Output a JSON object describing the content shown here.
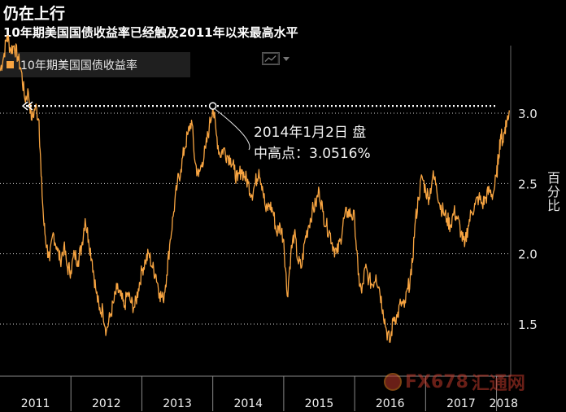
{
  "header": {
    "title": "仍在上行",
    "subtitle": "10年期美国国债收益率已经触及2011年以来最高水平"
  },
  "legend": {
    "label": "10年期美国国债收益率"
  },
  "toolbar": {
    "chart_type_icon": "line-chart-icon"
  },
  "annotation": {
    "line1": "2014年1月2日 盘",
    "line2": "中高点：3.0516%"
  },
  "ylabel": "百分比",
  "watermark": {
    "text": "FX678",
    "text_cn": "汇通网",
    "icon": "fx678-logo-icon"
  },
  "colors": {
    "background": "#000000",
    "series": "#f7a441",
    "grid": "#cfcfcf",
    "annotation": "#e6e6e6"
  },
  "chart_data": {
    "type": "line",
    "title": "仍在上行",
    "subtitle": "10年期美国国债收益率已经触及2011年以来最高水平",
    "xlabel": "",
    "ylabel": "百分比",
    "xlim": [
      2011.0,
      2018.2
    ],
    "ylim": [
      1.2,
      3.5
    ],
    "x_ticks": [
      "2011",
      "2012",
      "2013",
      "2014",
      "2015",
      "2016",
      "2017",
      "2018"
    ],
    "y_ticks": [
      1.5,
      2.0,
      2.5,
      3.0
    ],
    "grid": "horizontal dotted",
    "legend_position": "top-left",
    "reference_line": {
      "y": 3.0516,
      "style": "dotted"
    },
    "highlight_point": {
      "x": 2014.0,
      "y": 3.0516
    },
    "series": [
      {
        "name": "10年期美国国债收益率",
        "color": "#f7a441",
        "points": [
          [
            2011.0,
            3.3
          ],
          [
            2011.05,
            3.4
          ],
          [
            2011.1,
            3.55
          ],
          [
            2011.15,
            3.45
          ],
          [
            2011.2,
            3.48
          ],
          [
            2011.25,
            3.4
          ],
          [
            2011.3,
            3.3
          ],
          [
            2011.35,
            3.1
          ],
          [
            2011.4,
            3.15
          ],
          [
            2011.45,
            2.95
          ],
          [
            2011.5,
            3.05
          ],
          [
            2011.55,
            2.95
          ],
          [
            2011.58,
            2.55
          ],
          [
            2011.62,
            2.2
          ],
          [
            2011.66,
            2.05
          ],
          [
            2011.7,
            1.95
          ],
          [
            2011.75,
            2.15
          ],
          [
            2011.8,
            2.05
          ],
          [
            2011.85,
            1.95
          ],
          [
            2011.9,
            2.05
          ],
          [
            2011.95,
            1.9
          ],
          [
            2012.0,
            1.88
          ],
          [
            2012.05,
            2.0
          ],
          [
            2012.1,
            1.95
          ],
          [
            2012.15,
            2.05
          ],
          [
            2012.2,
            2.25
          ],
          [
            2012.25,
            2.1
          ],
          [
            2012.3,
            1.95
          ],
          [
            2012.35,
            1.75
          ],
          [
            2012.4,
            1.6
          ],
          [
            2012.45,
            1.6
          ],
          [
            2012.5,
            1.45
          ],
          [
            2012.55,
            1.55
          ],
          [
            2012.6,
            1.65
          ],
          [
            2012.65,
            1.75
          ],
          [
            2012.7,
            1.7
          ],
          [
            2012.75,
            1.62
          ],
          [
            2012.8,
            1.72
          ],
          [
            2012.85,
            1.65
          ],
          [
            2012.9,
            1.62
          ],
          [
            2012.95,
            1.75
          ],
          [
            2013.0,
            1.88
          ],
          [
            2013.05,
            1.95
          ],
          [
            2013.1,
            2.0
          ],
          [
            2013.15,
            1.9
          ],
          [
            2013.2,
            1.85
          ],
          [
            2013.25,
            1.72
          ],
          [
            2013.3,
            1.67
          ],
          [
            2013.35,
            1.85
          ],
          [
            2013.4,
            2.1
          ],
          [
            2013.45,
            2.3
          ],
          [
            2013.5,
            2.5
          ],
          [
            2013.55,
            2.6
          ],
          [
            2013.6,
            2.75
          ],
          [
            2013.65,
            2.85
          ],
          [
            2013.7,
            2.95
          ],
          [
            2013.75,
            2.65
          ],
          [
            2013.8,
            2.55
          ],
          [
            2013.85,
            2.65
          ],
          [
            2013.9,
            2.75
          ],
          [
            2013.95,
            2.9
          ],
          [
            2014.0,
            3.0516
          ],
          [
            2014.05,
            2.85
          ],
          [
            2014.1,
            2.7
          ],
          [
            2014.15,
            2.75
          ],
          [
            2014.2,
            2.7
          ],
          [
            2014.25,
            2.68
          ],
          [
            2014.3,
            2.6
          ],
          [
            2014.35,
            2.52
          ],
          [
            2014.4,
            2.6
          ],
          [
            2014.45,
            2.55
          ],
          [
            2014.5,
            2.5
          ],
          [
            2014.55,
            2.42
          ],
          [
            2014.6,
            2.5
          ],
          [
            2014.65,
            2.6
          ],
          [
            2014.7,
            2.48
          ],
          [
            2014.75,
            2.3
          ],
          [
            2014.8,
            2.35
          ],
          [
            2014.85,
            2.3
          ],
          [
            2014.9,
            2.15
          ],
          [
            2014.95,
            2.2
          ],
          [
            2015.0,
            2.1
          ],
          [
            2015.05,
            1.7
          ],
          [
            2015.1,
            2.0
          ],
          [
            2015.15,
            2.15
          ],
          [
            2015.2,
            1.95
          ],
          [
            2015.25,
            1.9
          ],
          [
            2015.3,
            2.1
          ],
          [
            2015.35,
            2.2
          ],
          [
            2015.4,
            2.3
          ],
          [
            2015.45,
            2.35
          ],
          [
            2015.5,
            2.45
          ],
          [
            2015.55,
            2.3
          ],
          [
            2015.6,
            2.2
          ],
          [
            2015.65,
            2.15
          ],
          [
            2015.7,
            2.05
          ],
          [
            2015.75,
            2.0
          ],
          [
            2015.8,
            2.1
          ],
          [
            2015.85,
            2.25
          ],
          [
            2015.9,
            2.3
          ],
          [
            2015.95,
            2.28
          ],
          [
            2016.0,
            2.25
          ],
          [
            2016.05,
            1.85
          ],
          [
            2016.1,
            1.72
          ],
          [
            2016.15,
            1.9
          ],
          [
            2016.2,
            1.82
          ],
          [
            2016.25,
            1.78
          ],
          [
            2016.3,
            1.85
          ],
          [
            2016.35,
            1.75
          ],
          [
            2016.4,
            1.6
          ],
          [
            2016.45,
            1.45
          ],
          [
            2016.5,
            1.37
          ],
          [
            2016.55,
            1.55
          ],
          [
            2016.6,
            1.55
          ],
          [
            2016.65,
            1.65
          ],
          [
            2016.7,
            1.62
          ],
          [
            2016.75,
            1.75
          ],
          [
            2016.8,
            1.85
          ],
          [
            2016.85,
            2.2
          ],
          [
            2016.9,
            2.4
          ],
          [
            2016.95,
            2.55
          ],
          [
            2017.0,
            2.45
          ],
          [
            2017.05,
            2.4
          ],
          [
            2017.1,
            2.55
          ],
          [
            2017.15,
            2.5
          ],
          [
            2017.2,
            2.35
          ],
          [
            2017.25,
            2.3
          ],
          [
            2017.3,
            2.25
          ],
          [
            2017.35,
            2.2
          ],
          [
            2017.4,
            2.3
          ],
          [
            2017.45,
            2.25
          ],
          [
            2017.5,
            2.15
          ],
          [
            2017.55,
            2.05
          ],
          [
            2017.6,
            2.2
          ],
          [
            2017.65,
            2.3
          ],
          [
            2017.7,
            2.35
          ],
          [
            2017.75,
            2.4
          ],
          [
            2017.8,
            2.35
          ],
          [
            2017.85,
            2.4
          ],
          [
            2017.9,
            2.45
          ],
          [
            2017.95,
            2.42
          ],
          [
            2018.0,
            2.55
          ],
          [
            2018.03,
            2.7
          ],
          [
            2018.06,
            2.85
          ],
          [
            2018.09,
            2.8
          ],
          [
            2018.12,
            2.9
          ],
          [
            2018.15,
            2.95
          ],
          [
            2018.18,
            3.02
          ]
        ]
      }
    ]
  }
}
